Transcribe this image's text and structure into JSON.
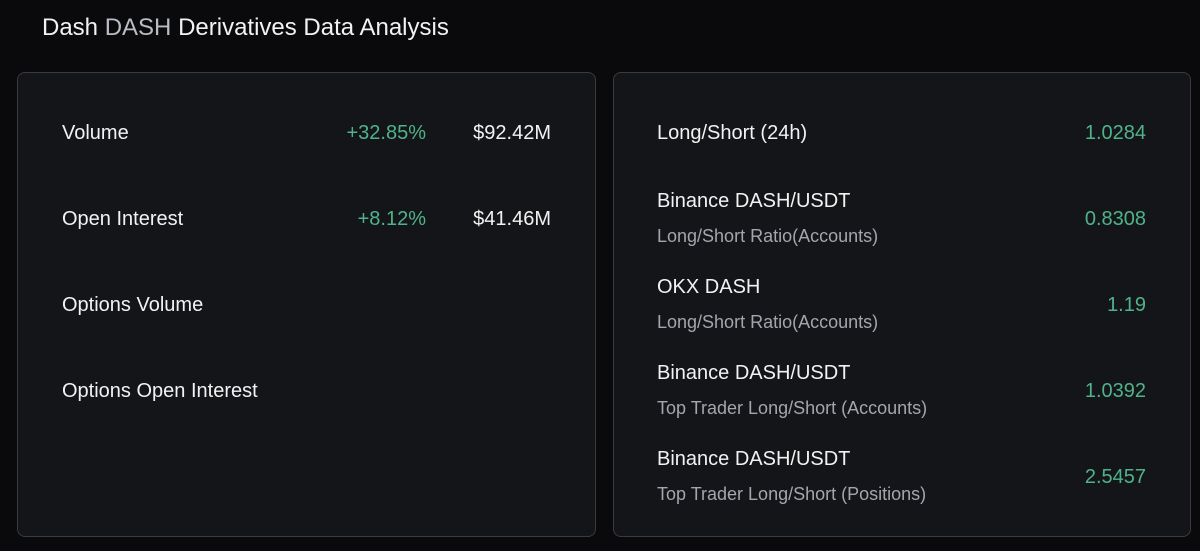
{
  "header": {
    "name": "Dash",
    "symbol": "DASH",
    "title": "Derivatives Data Analysis"
  },
  "left_panel": {
    "rows": [
      {
        "label": "Volume",
        "change": "+32.85%",
        "value": "$92.42M"
      },
      {
        "label": "Open Interest",
        "change": "+8.12%",
        "value": "$41.46M"
      },
      {
        "label": "Options Volume"
      },
      {
        "label": "Options Open Interest"
      }
    ]
  },
  "right_panel": {
    "rows": [
      {
        "label": "Long/Short (24h)",
        "value": "1.0284"
      },
      {
        "label": "Binance DASH/USDT",
        "sublabel": "Long/Short Ratio(Accounts)",
        "value": "0.8308"
      },
      {
        "label": "OKX DASH",
        "sublabel": "Long/Short Ratio(Accounts)",
        "value": "1.19"
      },
      {
        "label": "Binance DASH/USDT",
        "sublabel": "Top Trader Long/Short (Accounts)",
        "value": "1.0392"
      },
      {
        "label": "Binance DASH/USDT",
        "sublabel": "Top Trader Long/Short (Positions)",
        "value": "2.5457"
      }
    ]
  }
}
